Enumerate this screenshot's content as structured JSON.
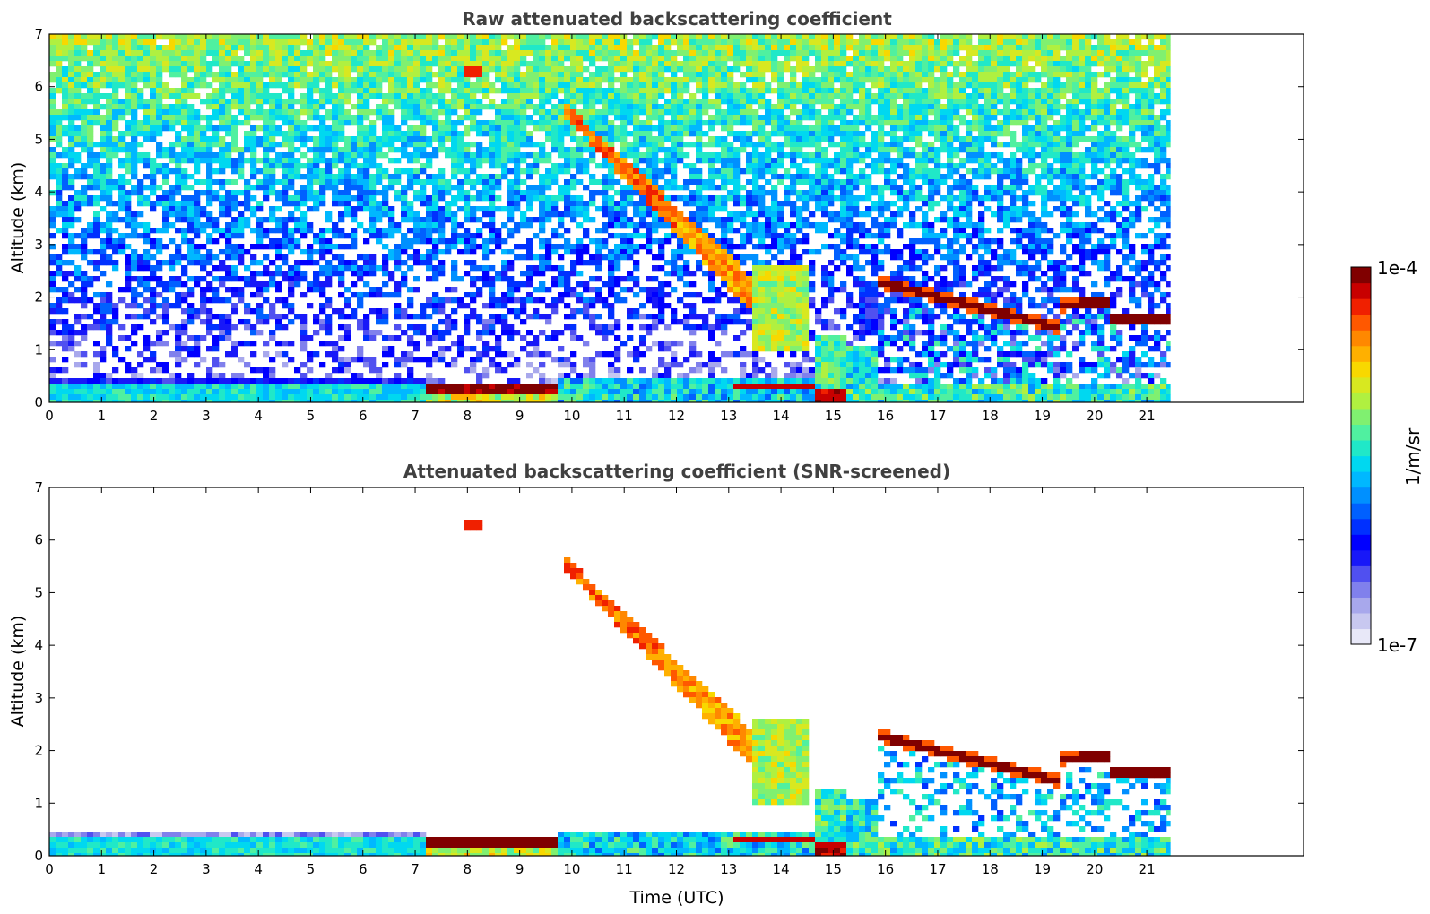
{
  "chart_data": [
    {
      "type": "heatmap",
      "title": "Raw attenuated backscattering coefficient",
      "xlabel": "",
      "ylabel": "Altitude (km)",
      "xlim": [
        0,
        24
      ],
      "ylim": [
        0,
        7
      ],
      "xticks": [
        "0",
        "1",
        "2",
        "3",
        "4",
        "5",
        "6",
        "7",
        "8",
        "9",
        "10",
        "11",
        "12",
        "13",
        "14",
        "15",
        "16",
        "17",
        "18",
        "19",
        "20",
        "21"
      ],
      "yticks": [
        "0",
        "1",
        "2",
        "3",
        "4",
        "5",
        "6",
        "7"
      ],
      "data_end_time": 21.45,
      "features": [
        {
          "name": "boundary layer",
          "start": 0,
          "end": 7.2,
          "altitude": 0.3,
          "level": "blue"
        },
        {
          "name": "dense low layer",
          "start": 7.2,
          "end": 9.7,
          "altitude": 0.25,
          "level": "dark red"
        },
        {
          "name": "elevated plume",
          "start": 8.0,
          "end": 8.3,
          "altitude": 6.3,
          "level": "red"
        },
        {
          "name": "descending layer",
          "start": 9.9,
          "end": 14.0,
          "top_altitude": 5.6,
          "bottom_altitude": 1.8,
          "level": "orange"
        },
        {
          "name": "afternoon cloud layer",
          "start": 15.8,
          "end": 21.45,
          "start_altitude": 2.3,
          "end_altitude": 1.55,
          "level": "dark red"
        }
      ]
    },
    {
      "type": "heatmap",
      "title": "Attenuated backscattering coefficient (SNR-screened)",
      "xlabel": "Time (UTC)",
      "ylabel": "Altitude (km)",
      "xlim": [
        0,
        24
      ],
      "ylim": [
        0,
        7
      ],
      "xticks": [
        "0",
        "1",
        "2",
        "3",
        "4",
        "5",
        "6",
        "7",
        "8",
        "9",
        "10",
        "11",
        "12",
        "13",
        "14",
        "15",
        "16",
        "17",
        "18",
        "19",
        "20",
        "21"
      ],
      "yticks": [
        "0",
        "1",
        "2",
        "3",
        "4",
        "5",
        "6",
        "7"
      ],
      "data_end_time": 21.45
    }
  ],
  "colorbar": {
    "label": "1/m/sr",
    "max_label": "1e-4",
    "min_label": "1e-7",
    "colors": [
      "#e8e8f8",
      "#c8c8f0",
      "#a8a8ec",
      "#8080ec",
      "#5050f0",
      "#1818f8",
      "#0000ff",
      "#0030ff",
      "#0060ff",
      "#0090ff",
      "#00b8ff",
      "#00d8f0",
      "#20e8c8",
      "#50f0a0",
      "#80f070",
      "#b0f040",
      "#d8e820",
      "#f8d800",
      "#ffb000",
      "#ff8800",
      "#ff5800",
      "#f02000",
      "#c80000",
      "#800000"
    ]
  }
}
